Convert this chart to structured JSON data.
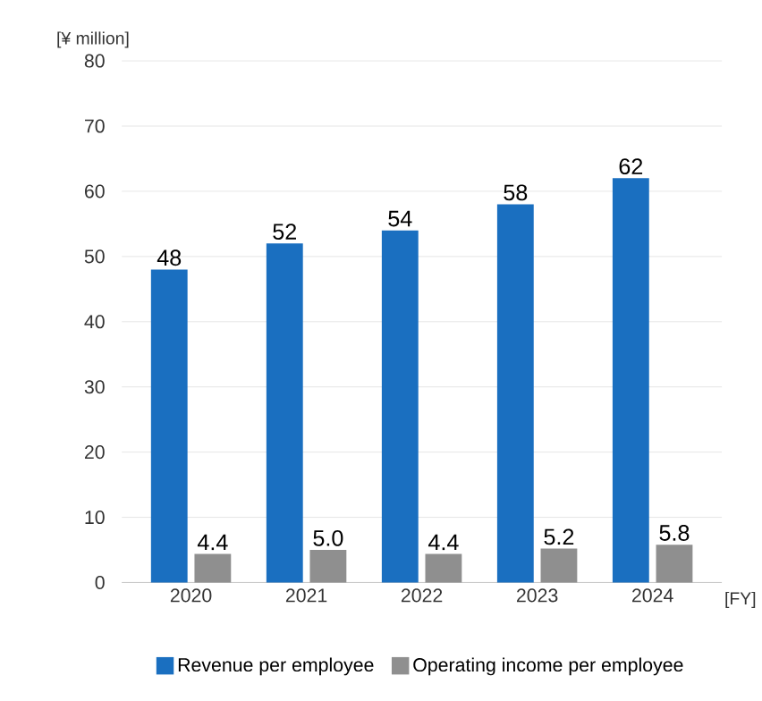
{
  "chart_data": {
    "type": "bar",
    "ylabel": "[¥ million]",
    "xlabel": "[FY]",
    "categories": [
      "2020",
      "2021",
      "2022",
      "2023",
      "2024"
    ],
    "series": [
      {
        "name": "Revenue per employee",
        "color": "#1a6fc0",
        "values": [
          48,
          52,
          54,
          58,
          62
        ],
        "value_labels": [
          "48",
          "52",
          "54",
          "58",
          "62"
        ]
      },
      {
        "name": "Operating income per employee",
        "color": "#8f8f8f",
        "values": [
          4.4,
          5.0,
          4.4,
          5.2,
          5.8
        ],
        "value_labels": [
          "4.4",
          "5.0",
          "4.4",
          "5.2",
          "5.8"
        ]
      }
    ],
    "ylim": [
      0,
      80
    ],
    "yticks": [
      0,
      10,
      20,
      30,
      40,
      50,
      60,
      70,
      80
    ],
    "grid": "y",
    "legend": "bottom"
  }
}
